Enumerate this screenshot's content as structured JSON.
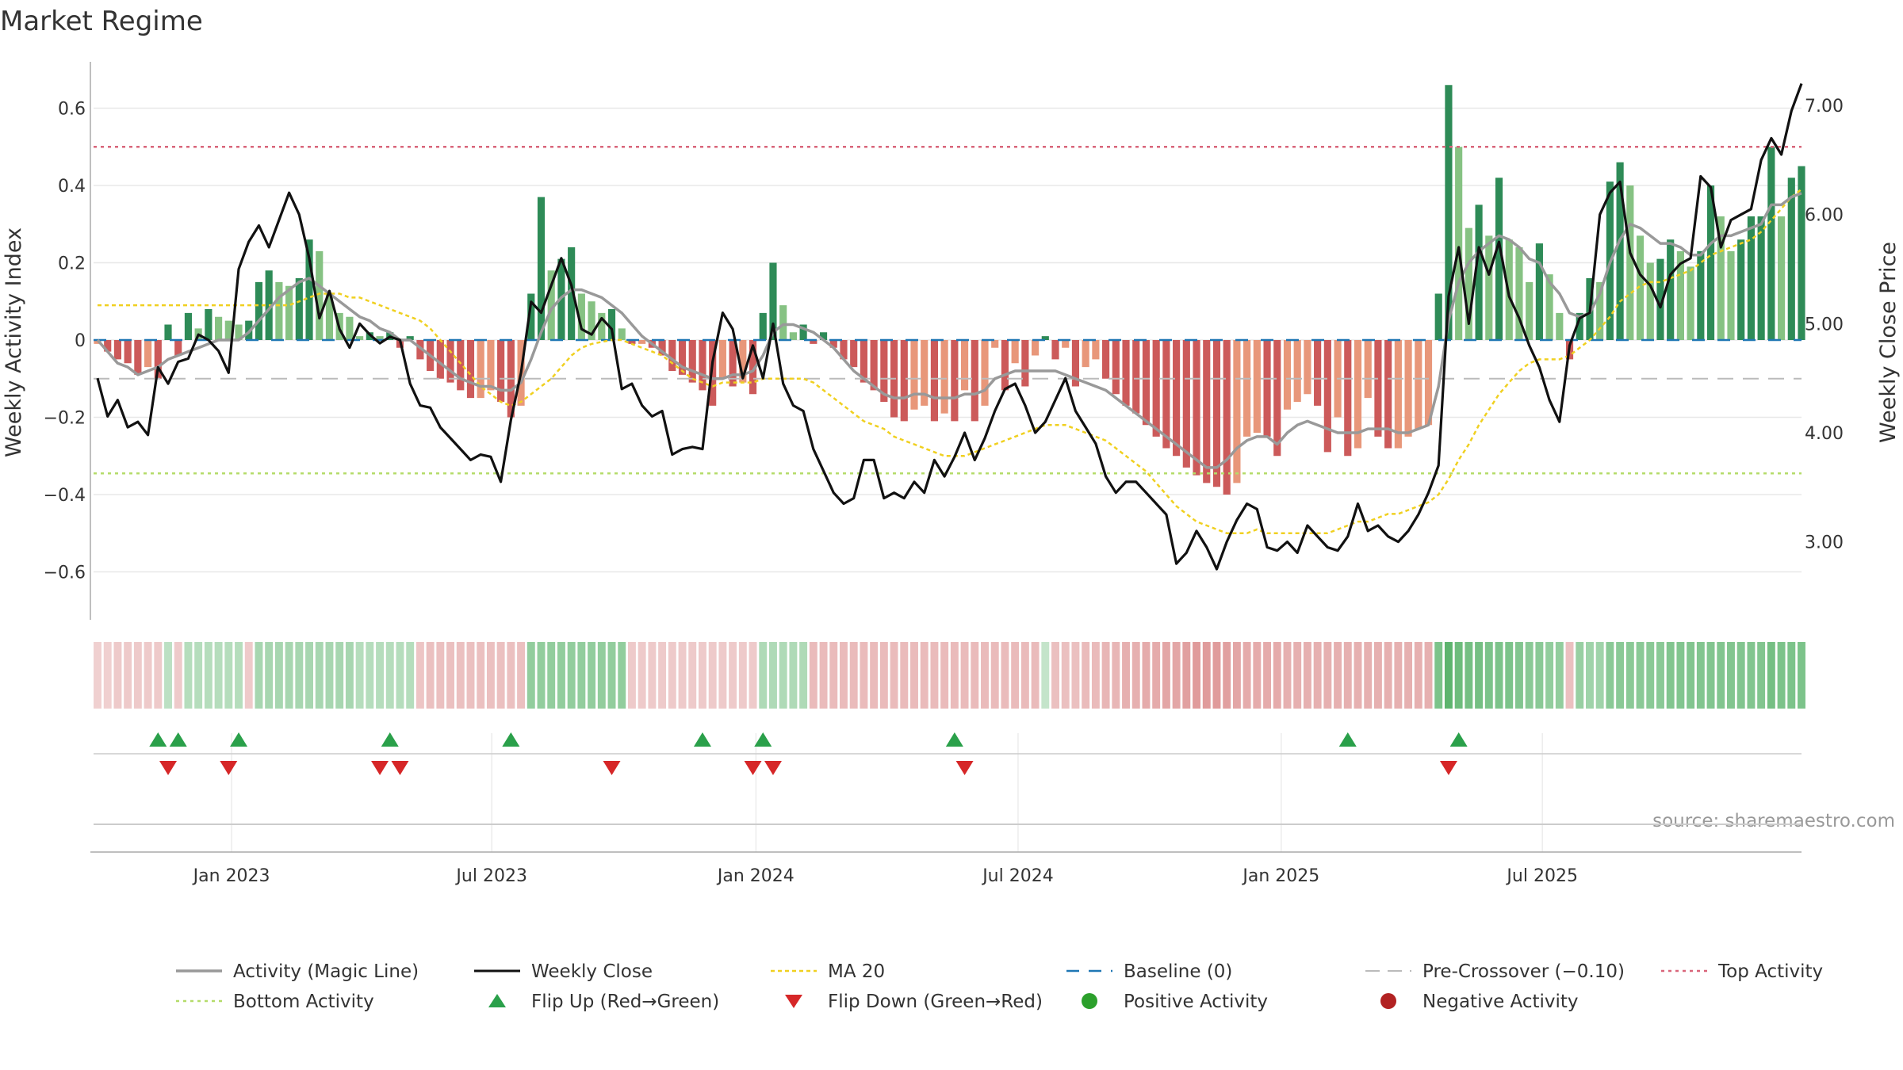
{
  "page": {
    "title": "Market Regime",
    "source": "source: sharemaestro.com"
  },
  "colors": {
    "pos_dark": "#2e8b57",
    "pos_light": "#86c283",
    "neg_dark": "#cc5a5a",
    "neg_light": "#e8977a",
    "magic": "#999999",
    "close": "#111111",
    "ma": "#f0d020",
    "baseline": "#1f77b4",
    "precross": "#bbbbbb",
    "top": "#d9657a",
    "bottom": "#b5dc6a",
    "flip_up": "#2aa04a",
    "flip_down": "#d62728",
    "pos_dot": "#2ca02c",
    "neg_dot": "#b22222"
  },
  "chart_data": {
    "type": "bar+line",
    "title": "Market Regime",
    "ylabel_left": "Weekly Activity Index",
    "ylabel_right": "Weekly Close Price",
    "ylim_left": [
      -0.72,
      0.72
    ],
    "ylim_right": [
      2.3,
      7.4
    ],
    "yticks_left": [
      {
        "v": 0.6,
        "label": "0.6"
      },
      {
        "v": 0.4,
        "label": "0.4"
      },
      {
        "v": 0.2,
        "label": "0.2"
      },
      {
        "v": 0,
        "label": "0"
      },
      {
        "v": -0.2,
        "label": "−0.2"
      },
      {
        "v": -0.4,
        "label": "−0.4"
      },
      {
        "v": -0.6,
        "label": "−0.6"
      }
    ],
    "yticks_right": [
      {
        "v": 7.0,
        "label": "7.00"
      },
      {
        "v": 6.0,
        "label": "6.00"
      },
      {
        "v": 5.0,
        "label": "5.00"
      },
      {
        "v": 4.0,
        "label": "4.00"
      },
      {
        "v": 3.0,
        "label": "3.00"
      }
    ],
    "xticks": [
      {
        "week": 13.3,
        "label": "Jan 2023"
      },
      {
        "week": 39.1,
        "label": "Jul 2023"
      },
      {
        "week": 65.3,
        "label": "Jan 2024"
      },
      {
        "week": 91.3,
        "label": "Jul 2024"
      },
      {
        "week": 117.4,
        "label": "Jan 2025"
      },
      {
        "week": 143.3,
        "label": "Jul 2025"
      }
    ],
    "reference_lines": {
      "baseline": 0,
      "pre_crossover": -0.1,
      "top": 0.5,
      "bottom": -0.345
    },
    "activity": [
      -0.01,
      -0.03,
      -0.05,
      -0.06,
      -0.09,
      -0.07,
      -0.1,
      0.04,
      -0.04,
      0.07,
      0.03,
      0.08,
      0.06,
      0.05,
      0.04,
      0.05,
      0.15,
      0.18,
      0.15,
      0.14,
      0.16,
      0.26,
      0.23,
      0.12,
      0.07,
      0.06,
      0.01,
      0.02,
      0.01,
      0.02,
      -0.02,
      0.01,
      -0.05,
      -0.08,
      -0.1,
      -0.11,
      -0.13,
      -0.15,
      -0.15,
      -0.13,
      -0.16,
      -0.2,
      -0.17,
      0.12,
      0.37,
      0.18,
      0.21,
      0.24,
      0.12,
      0.1,
      0.07,
      0.08,
      0.03,
      -0.01,
      -0.01,
      -0.02,
      -0.04,
      -0.08,
      -0.09,
      -0.11,
      -0.13,
      -0.17,
      -0.1,
      -0.12,
      -0.11,
      -0.14,
      0.07,
      0.2,
      0.09,
      0.02,
      0.04,
      -0.01,
      0.02,
      -0.02,
      -0.05,
      -0.07,
      -0.11,
      -0.13,
      -0.16,
      -0.2,
      -0.21,
      -0.18,
      -0.17,
      -0.21,
      -0.19,
      -0.21,
      -0.13,
      -0.21,
      -0.17,
      -0.02,
      -0.13,
      -0.06,
      -0.12,
      -0.04,
      0.01,
      -0.05,
      -0.02,
      -0.12,
      -0.07,
      -0.05,
      -0.1,
      -0.14,
      -0.17,
      -0.19,
      -0.22,
      -0.25,
      -0.28,
      -0.3,
      -0.33,
      -0.35,
      -0.37,
      -0.38,
      -0.4,
      -0.37,
      -0.25,
      -0.24,
      -0.25,
      -0.3,
      -0.18,
      -0.16,
      -0.14,
      -0.17,
      -0.29,
      -0.2,
      -0.3,
      -0.28,
      -0.15,
      -0.25,
      -0.28,
      -0.28,
      -0.25,
      -0.23,
      -0.22,
      0.12,
      0.66,
      0.5,
      0.29,
      0.35,
      0.27,
      0.42,
      0.26,
      0.24,
      0.15,
      0.25,
      0.17,
      0.07,
      -0.05,
      0.07,
      0.16,
      0.15,
      0.41,
      0.46,
      0.4,
      0.27,
      0.2,
      0.21,
      0.26,
      0.23,
      0.19,
      0.23,
      0.4,
      0.32,
      0.23,
      0.26,
      0.32,
      0.32,
      0.5,
      0.32,
      0.42,
      0.45
    ],
    "magic_line": [
      0.0,
      -0.03,
      -0.06,
      -0.07,
      -0.09,
      -0.08,
      -0.07,
      -0.05,
      -0.04,
      -0.03,
      -0.02,
      -0.01,
      0.0,
      0.0,
      0.0,
      0.02,
      0.05,
      0.08,
      0.11,
      0.13,
      0.15,
      0.16,
      0.14,
      0.12,
      0.1,
      0.08,
      0.06,
      0.05,
      0.03,
      0.02,
      0.0,
      0.0,
      -0.02,
      -0.04,
      -0.06,
      -0.08,
      -0.1,
      -0.11,
      -0.12,
      -0.12,
      -0.13,
      -0.13,
      -0.11,
      -0.05,
      0.02,
      0.08,
      0.11,
      0.13,
      0.13,
      0.12,
      0.11,
      0.09,
      0.07,
      0.04,
      0.01,
      -0.01,
      -0.03,
      -0.05,
      -0.07,
      -0.08,
      -0.09,
      -0.1,
      -0.1,
      -0.09,
      -0.09,
      -0.08,
      -0.04,
      0.02,
      0.04,
      0.04,
      0.03,
      0.02,
      0.0,
      -0.02,
      -0.05,
      -0.08,
      -0.1,
      -0.12,
      -0.14,
      -0.15,
      -0.15,
      -0.14,
      -0.14,
      -0.15,
      -0.15,
      -0.15,
      -0.14,
      -0.14,
      -0.13,
      -0.1,
      -0.09,
      -0.08,
      -0.08,
      -0.08,
      -0.08,
      -0.08,
      -0.09,
      -0.1,
      -0.11,
      -0.12,
      -0.13,
      -0.15,
      -0.17,
      -0.19,
      -0.21,
      -0.23,
      -0.25,
      -0.27,
      -0.29,
      -0.31,
      -0.33,
      -0.33,
      -0.31,
      -0.28,
      -0.26,
      -0.25,
      -0.25,
      -0.27,
      -0.24,
      -0.22,
      -0.21,
      -0.22,
      -0.23,
      -0.24,
      -0.24,
      -0.24,
      -0.23,
      -0.23,
      -0.23,
      -0.24,
      -0.24,
      -0.23,
      -0.22,
      -0.12,
      0.05,
      0.15,
      0.2,
      0.23,
      0.25,
      0.27,
      0.26,
      0.24,
      0.21,
      0.2,
      0.15,
      0.12,
      0.07,
      0.06,
      0.07,
      0.12,
      0.2,
      0.26,
      0.3,
      0.29,
      0.27,
      0.25,
      0.25,
      0.24,
      0.22,
      0.22,
      0.25,
      0.27,
      0.27,
      0.28,
      0.29,
      0.3,
      0.35,
      0.35,
      0.37,
      0.38
    ],
    "close": [
      4.5,
      4.15,
      4.3,
      4.05,
      4.1,
      3.98,
      4.6,
      4.45,
      4.65,
      4.68,
      4.9,
      4.85,
      4.75,
      4.55,
      5.5,
      5.75,
      5.9,
      5.7,
      5.95,
      6.2,
      6.0,
      5.6,
      5.05,
      5.3,
      4.95,
      4.78,
      5.0,
      4.9,
      4.82,
      4.88,
      4.85,
      4.45,
      4.25,
      4.23,
      4.05,
      3.95,
      3.85,
      3.75,
      3.8,
      3.78,
      3.55,
      4.12,
      4.55,
      5.2,
      5.1,
      5.35,
      5.6,
      5.35,
      4.95,
      4.9,
      5.05,
      4.95,
      4.4,
      4.45,
      4.25,
      4.15,
      4.2,
      3.8,
      3.85,
      3.87,
      3.85,
      4.65,
      5.1,
      4.95,
      4.5,
      4.8,
      4.5,
      5.0,
      4.45,
      4.25,
      4.2,
      3.85,
      3.65,
      3.45,
      3.35,
      3.4,
      3.75,
      3.75,
      3.4,
      3.45,
      3.4,
      3.55,
      3.45,
      3.75,
      3.6,
      3.78,
      4.0,
      3.75,
      3.95,
      4.2,
      4.4,
      4.45,
      4.25,
      4.0,
      4.1,
      4.3,
      4.5,
      4.2,
      4.05,
      3.9,
      3.6,
      3.45,
      3.55,
      3.55,
      3.45,
      3.35,
      3.25,
      2.8,
      2.9,
      3.1,
      2.95,
      2.75,
      3.0,
      3.2,
      3.35,
      3.3,
      2.95,
      2.92,
      3.0,
      2.9,
      3.15,
      3.05,
      2.95,
      2.92,
      3.05,
      3.35,
      3.1,
      3.15,
      3.05,
      3.0,
      3.1,
      3.25,
      3.45,
      3.7,
      5.25,
      5.7,
      5.0,
      5.7,
      5.45,
      5.75,
      5.25,
      5.05,
      4.8,
      4.6,
      4.3,
      4.1,
      4.8,
      5.05,
      5.1,
      6.0,
      6.2,
      6.3,
      5.65,
      5.45,
      5.35,
      5.15,
      5.45,
      5.55,
      5.6,
      6.35,
      6.25,
      5.7,
      5.95,
      6.0,
      6.05,
      6.5,
      6.7,
      6.55,
      6.95,
      7.2
    ],
    "ma20": [
      0.09,
      0.09,
      0.09,
      0.09,
      0.09,
      0.09,
      0.09,
      0.09,
      0.09,
      0.09,
      0.09,
      0.09,
      0.09,
      0.09,
      0.09,
      0.09,
      0.09,
      0.09,
      0.09,
      0.09,
      0.1,
      0.11,
      0.12,
      0.12,
      0.12,
      0.11,
      0.11,
      0.1,
      0.09,
      0.08,
      0.07,
      0.06,
      0.05,
      0.03,
      0.0,
      -0.03,
      -0.06,
      -0.09,
      -0.12,
      -0.14,
      -0.16,
      -0.17,
      -0.16,
      -0.14,
      -0.12,
      -0.1,
      -0.07,
      -0.04,
      -0.02,
      -0.01,
      -0.005,
      0.0,
      0.0,
      -0.01,
      -0.02,
      -0.03,
      -0.04,
      -0.06,
      -0.08,
      -0.1,
      -0.11,
      -0.12,
      -0.11,
      -0.11,
      -0.11,
      -0.11,
      -0.1,
      -0.1,
      -0.1,
      -0.1,
      -0.1,
      -0.11,
      -0.13,
      -0.15,
      -0.17,
      -0.19,
      -0.21,
      -0.22,
      -0.23,
      -0.25,
      -0.26,
      -0.27,
      -0.28,
      -0.29,
      -0.3,
      -0.3,
      -0.3,
      -0.29,
      -0.28,
      -0.27,
      -0.26,
      -0.25,
      -0.24,
      -0.23,
      -0.22,
      -0.22,
      -0.22,
      -0.23,
      -0.24,
      -0.25,
      -0.26,
      -0.28,
      -0.3,
      -0.32,
      -0.34,
      -0.37,
      -0.4,
      -0.43,
      -0.45,
      -0.47,
      -0.48,
      -0.49,
      -0.5,
      -0.5,
      -0.5,
      -0.49,
      -0.5,
      -0.5,
      -0.5,
      -0.5,
      -0.5,
      -0.5,
      -0.5,
      -0.49,
      -0.48,
      -0.47,
      -0.47,
      -0.46,
      -0.45,
      -0.45,
      -0.44,
      -0.43,
      -0.42,
      -0.4,
      -0.36,
      -0.31,
      -0.27,
      -0.22,
      -0.18,
      -0.14,
      -0.11,
      -0.08,
      -0.06,
      -0.05,
      -0.05,
      -0.05,
      -0.04,
      -0.02,
      0.0,
      0.03,
      0.06,
      0.1,
      0.12,
      0.14,
      0.15,
      0.15,
      0.16,
      0.17,
      0.18,
      0.2,
      0.22,
      0.23,
      0.24,
      0.25,
      0.26,
      0.28,
      0.31,
      0.34,
      0.37,
      0.39
    ],
    "regime_strip": [
      0.15,
      0.15,
      0.2,
      0.2,
      0.2,
      0.2,
      0.2,
      -0.25,
      0.2,
      -0.3,
      -0.3,
      -0.3,
      -0.3,
      -0.3,
      -0.3,
      0.2,
      -0.4,
      -0.4,
      -0.4,
      -0.4,
      -0.4,
      -0.4,
      -0.4,
      -0.4,
      -0.4,
      -0.4,
      -0.3,
      -0.3,
      -0.3,
      -0.3,
      -0.3,
      -0.3,
      0.25,
      0.3,
      0.3,
      0.3,
      0.3,
      0.3,
      0.3,
      0.3,
      0.3,
      0.3,
      0.3,
      -0.55,
      -0.55,
      -0.55,
      -0.55,
      -0.55,
      -0.55,
      -0.55,
      -0.55,
      -0.55,
      -0.55,
      0.2,
      0.2,
      0.2,
      0.2,
      0.2,
      0.2,
      0.2,
      0.2,
      0.2,
      0.2,
      0.2,
      0.2,
      0.2,
      -0.35,
      -0.35,
      -0.35,
      -0.35,
      -0.35,
      0.35,
      0.35,
      0.35,
      0.35,
      0.35,
      0.35,
      0.35,
      0.35,
      0.35,
      0.35,
      0.35,
      0.35,
      0.35,
      0.35,
      0.35,
      0.35,
      0.35,
      0.35,
      0.35,
      0.35,
      0.35,
      0.35,
      0.35,
      -0.2,
      0.3,
      0.3,
      0.3,
      0.35,
      0.35,
      0.4,
      0.4,
      0.45,
      0.45,
      0.5,
      0.5,
      0.55,
      0.55,
      0.6,
      0.65,
      0.65,
      0.65,
      0.6,
      0.55,
      0.5,
      0.5,
      0.5,
      0.5,
      0.45,
      0.45,
      0.45,
      0.45,
      0.45,
      0.45,
      0.45,
      0.45,
      0.45,
      0.45,
      0.45,
      0.45,
      0.45,
      0.45,
      0.45,
      -0.7,
      -0.9,
      -0.8,
      -0.75,
      -0.75,
      -0.7,
      -0.7,
      -0.7,
      -0.65,
      -0.6,
      -0.6,
      -0.55,
      -0.55,
      0.3,
      -0.5,
      -0.45,
      -0.45,
      -0.6,
      -0.6,
      -0.6,
      -0.6,
      -0.6,
      -0.6,
      -0.65,
      -0.65,
      -0.65,
      -0.65,
      -0.65,
      -0.65,
      -0.65,
      -0.65,
      -0.65,
      -0.65,
      -0.75,
      -0.7,
      -0.7,
      -0.7
    ],
    "flip_up_weeks": [
      6,
      8,
      14,
      29,
      41,
      60,
      66,
      85,
      124,
      135
    ],
    "flip_down_weeks": [
      7,
      13,
      28,
      30,
      51,
      65,
      67,
      86,
      134
    ],
    "legend": [
      {
        "key": "magic",
        "label": "Activity (Magic Line)"
      },
      {
        "key": "close",
        "label": "Weekly Close"
      },
      {
        "key": "ma",
        "label": "MA 20"
      },
      {
        "key": "baseline",
        "label": "Baseline (0)"
      },
      {
        "key": "precross",
        "label": "Pre-Crossover (−0.10)"
      },
      {
        "key": "top",
        "label": "Top Activity"
      },
      {
        "key": "bottom",
        "label": "Bottom Activity"
      },
      {
        "key": "flip_up",
        "label": "Flip Up (Red→Green)"
      },
      {
        "key": "flip_down",
        "label": "Flip Down (Green→Red)"
      },
      {
        "key": "pos_dot",
        "label": "Positive Activity"
      },
      {
        "key": "neg_dot",
        "label": "Negative Activity"
      }
    ]
  }
}
